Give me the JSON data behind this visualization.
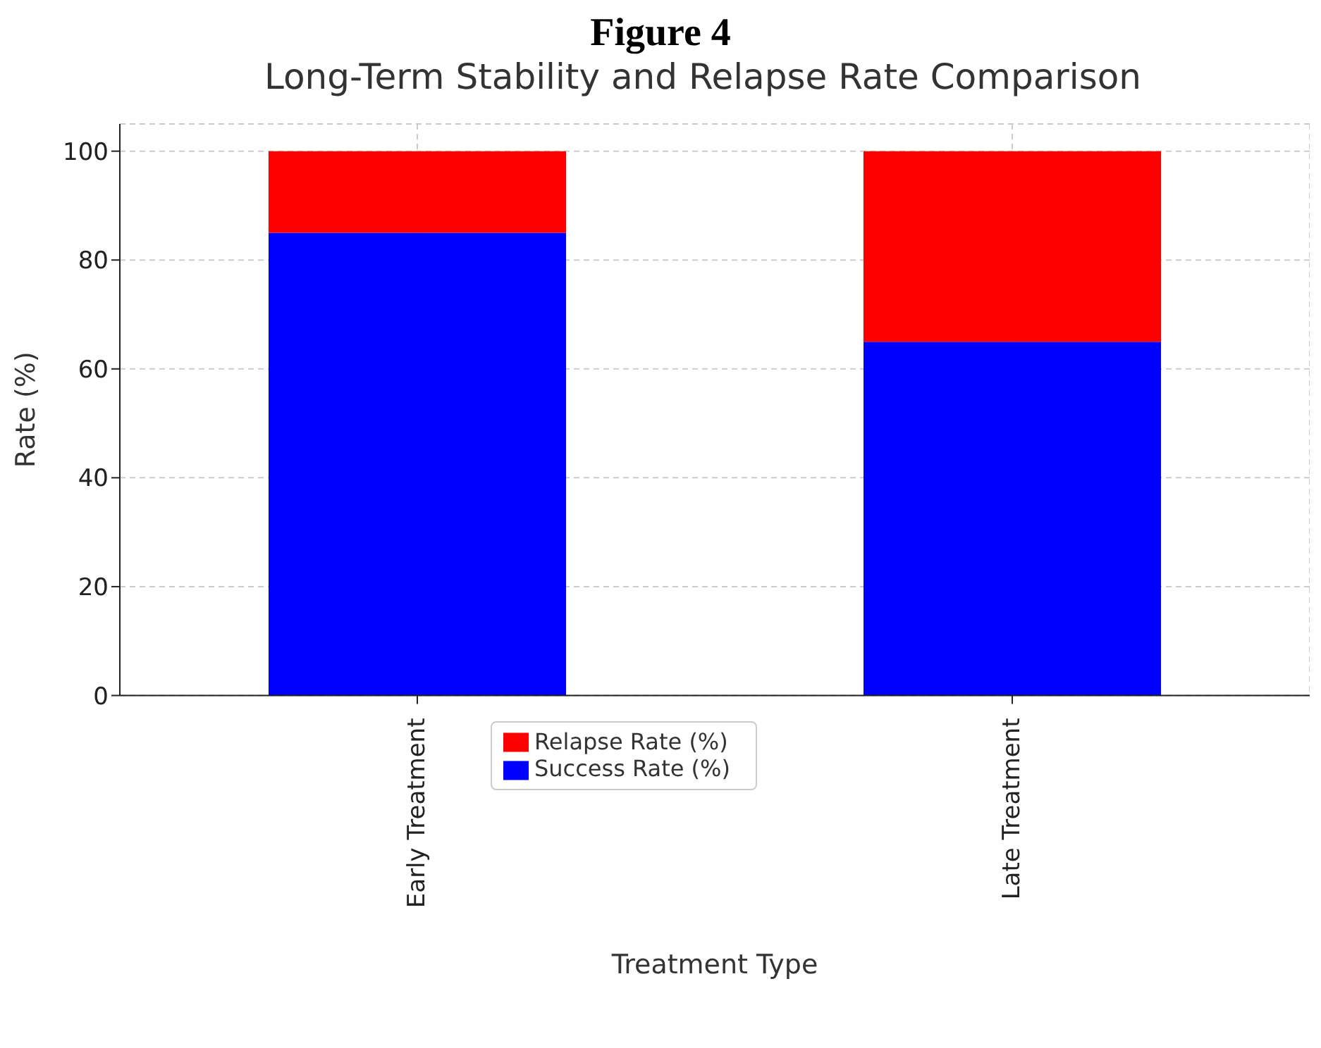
{
  "chart_data": {
    "type": "bar",
    "title": "Figure 4",
    "subtitle": "Long-Term Stability and Relapse Rate Comparison",
    "xlabel": "Treatment Type",
    "ylabel": "Rate (%)",
    "categories": [
      "Early Treatment",
      "Late Treatment"
    ],
    "series": [
      {
        "name": "Success Rate (%)",
        "color": "#0000ff",
        "values": [
          85,
          65
        ]
      },
      {
        "name": "Relapse Rate (%)",
        "color": "#ff0000",
        "values": [
          15,
          35
        ]
      }
    ],
    "stacked": true,
    "ylim": [
      0,
      105
    ],
    "yticks": [
      0,
      20,
      40,
      60,
      80,
      100
    ],
    "grid": true,
    "legend": "bottom"
  }
}
